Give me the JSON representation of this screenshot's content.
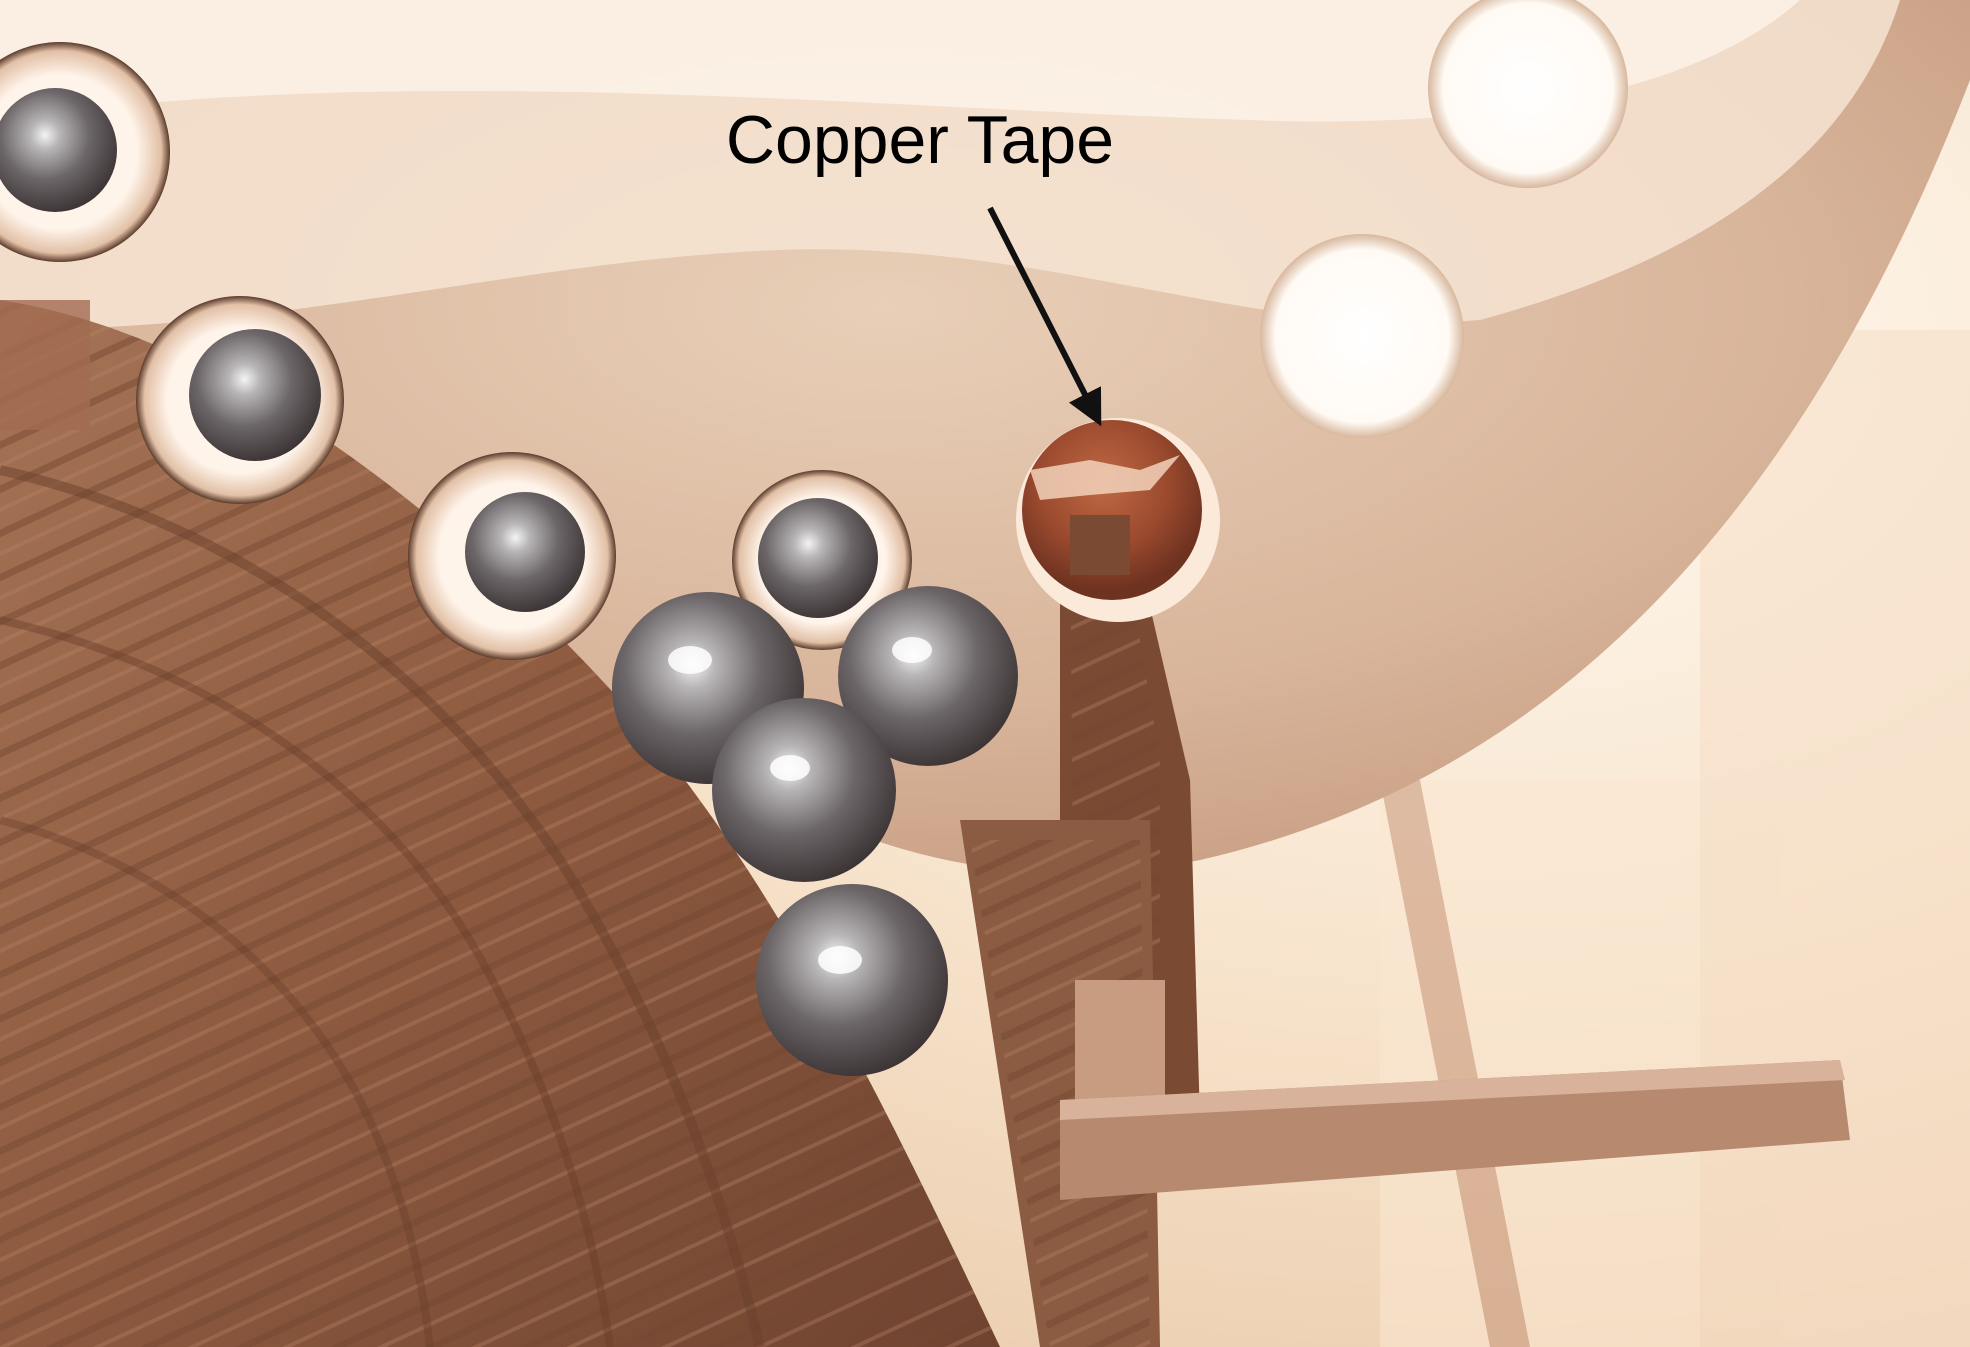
{
  "annotation": {
    "label": "Copper Tape"
  },
  "scene": {
    "subject": "steel-balls-in-wooden-holder",
    "marked_part": "copper-tape-contact"
  },
  "colors": {
    "background_light": "#fbeedd",
    "wood_plate": "#d9b498",
    "wood_dark": "#8a5a3e",
    "copper": "#9b4a2e",
    "steel": "#6c6a6c",
    "arrow": "#111111"
  }
}
